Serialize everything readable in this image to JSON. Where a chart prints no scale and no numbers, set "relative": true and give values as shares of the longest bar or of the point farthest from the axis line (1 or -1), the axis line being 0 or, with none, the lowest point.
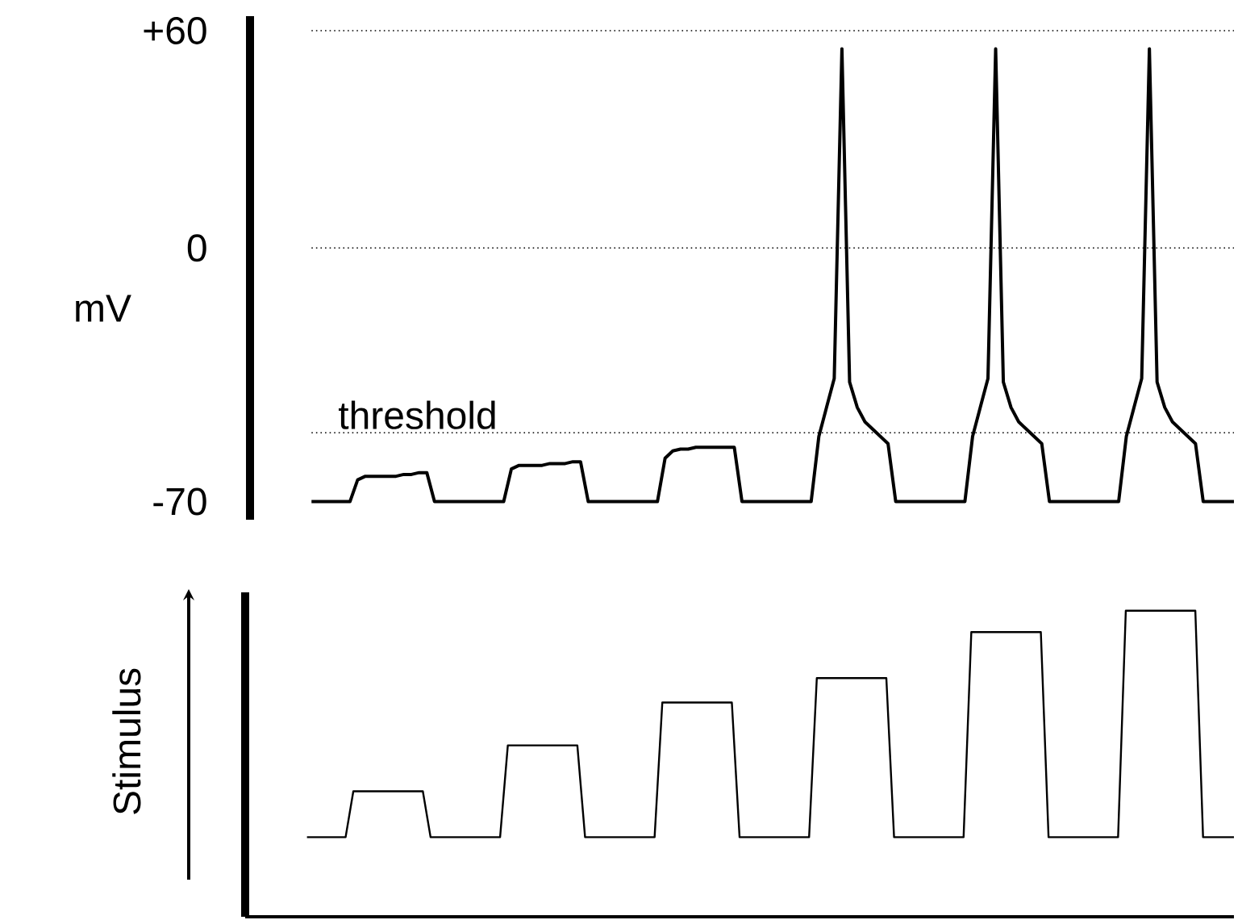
{
  "chart_data": [
    {
      "type": "line",
      "ylabel": "mV",
      "color": "#000000",
      "tick_labels": "y",
      "categories": [
        null,
        null,
        null,
        null,
        null,
        null,
        null,
        null,
        null,
        null,
        null,
        null,
        null,
        null,
        null,
        null,
        null,
        null,
        null,
        null,
        null,
        null,
        null,
        null,
        null,
        null,
        null,
        null,
        null,
        null,
        null,
        null,
        null,
        null,
        null,
        null,
        null,
        null,
        null,
        null,
        null,
        null,
        null,
        null,
        null,
        null,
        null,
        null,
        null,
        null,
        null,
        null,
        null,
        null,
        null,
        null,
        null,
        null,
        null,
        null,
        null,
        null,
        null,
        null,
        null,
        null,
        null,
        null,
        null,
        null,
        null,
        null,
        null,
        null,
        null,
        null,
        null,
        null,
        null,
        null,
        null,
        null,
        null,
        null,
        null,
        null,
        null,
        null,
        null,
        null,
        null,
        null,
        null,
        null,
        null,
        null,
        null,
        null,
        null,
        null,
        null,
        null,
        null,
        null,
        null,
        null,
        null,
        null,
        null,
        null,
        null,
        null,
        null,
        null,
        null,
        null,
        null,
        null,
        null,
        null,
        null
      ],
      "values": [
        -70,
        -70,
        -70,
        -70,
        -70,
        -70,
        -64,
        -63,
        -63,
        -63,
        -63,
        -63,
        -62.5,
        -62.5,
        -62,
        -62,
        -70,
        -70,
        -70,
        -70,
        -70,
        -70,
        -70,
        -70,
        -70,
        -70,
        -61,
        -60,
        -60,
        -60,
        -60,
        -59.5,
        -59.5,
        -59.5,
        -59,
        -59,
        -70,
        -70,
        -70,
        -70,
        -70,
        -70,
        -70,
        -70,
        -70,
        -70,
        -58,
        -56,
        -55.5,
        -55.5,
        -55,
        -55,
        -55,
        -55,
        -55,
        -55,
        -70,
        -70,
        -70,
        -70,
        -70,
        -70,
        -70,
        -70,
        -70,
        -70,
        -52,
        -44,
        -36,
        55,
        -37,
        -44,
        -48,
        -50,
        -52,
        -54,
        -70,
        -70,
        -70,
        -70,
        -70,
        -70,
        -70,
        -70,
        -70,
        -70,
        -52,
        -44,
        -36,
        55,
        -37,
        -44,
        -48,
        -50,
        -52,
        -54,
        -70,
        -70,
        -70,
        -70,
        -70,
        -70,
        -70,
        -70,
        -70,
        -70,
        -52,
        -44,
        -36,
        55,
        -37,
        -44,
        -48,
        -50,
        -52,
        -54,
        -70,
        -70,
        -70,
        -70,
        -70
      ],
      "ylim": [
        -75,
        64
      ],
      "yticks": [
        {
          "value": 60,
          "label": "+60"
        },
        0,
        -70
      ],
      "ref_lines": [
        {
          "axis": "y",
          "value": 60,
          "line_style": "dotted"
        },
        {
          "axis": "y",
          "value": 0,
          "line_style": "dotted"
        },
        {
          "axis": "y",
          "value": -51,
          "label": "threshold",
          "line_style": "dotted"
        }
      ]
    },
    {
      "type": "line",
      "ylabel": "Stimulus",
      "color": "#000000",
      "relative": true,
      "tick_labels": false,
      "categories": [
        null,
        null,
        null,
        null,
        null,
        null,
        null,
        null,
        null,
        null,
        null,
        null,
        null,
        null,
        null,
        null,
        null,
        null,
        null,
        null,
        null,
        null,
        null,
        null,
        null,
        null,
        null,
        null,
        null,
        null,
        null,
        null,
        null,
        null,
        null,
        null,
        null,
        null,
        null,
        null,
        null,
        null,
        null,
        null,
        null,
        null,
        null,
        null,
        null,
        null,
        null,
        null,
        null,
        null,
        null,
        null,
        null,
        null,
        null,
        null,
        null,
        null,
        null,
        null,
        null,
        null,
        null,
        null,
        null,
        null,
        null,
        null,
        null,
        null,
        null,
        null,
        null,
        null,
        null,
        null,
        null,
        null,
        null,
        null,
        null,
        null,
        null,
        null,
        null,
        null,
        null,
        null,
        null,
        null,
        null,
        null,
        null,
        null,
        null,
        null,
        null,
        null,
        null,
        null,
        null,
        null,
        null,
        null,
        null,
        null,
        null,
        null,
        null,
        null,
        null,
        null,
        null,
        null,
        null,
        null,
        null
      ],
      "values": [
        0.26,
        0.26,
        0.26,
        0.26,
        0.26,
        0.26,
        0.41,
        0.41,
        0.41,
        0.41,
        0.41,
        0.41,
        0.41,
        0.41,
        0.41,
        0.41,
        0.26,
        0.26,
        0.26,
        0.26,
        0.26,
        0.26,
        0.26,
        0.26,
        0.26,
        0.26,
        0.56,
        0.56,
        0.56,
        0.56,
        0.56,
        0.56,
        0.56,
        0.56,
        0.56,
        0.56,
        0.26,
        0.26,
        0.26,
        0.26,
        0.26,
        0.26,
        0.26,
        0.26,
        0.26,
        0.26,
        0.7,
        0.7,
        0.7,
        0.7,
        0.7,
        0.7,
        0.7,
        0.7,
        0.7,
        0.7,
        0.26,
        0.26,
        0.26,
        0.26,
        0.26,
        0.26,
        0.26,
        0.26,
        0.26,
        0.26,
        0.78,
        0.78,
        0.78,
        0.78,
        0.78,
        0.78,
        0.78,
        0.78,
        0.78,
        0.78,
        0.26,
        0.26,
        0.26,
        0.26,
        0.26,
        0.26,
        0.26,
        0.26,
        0.26,
        0.26,
        0.93,
        0.93,
        0.93,
        0.93,
        0.93,
        0.93,
        0.93,
        0.93,
        0.93,
        0.93,
        0.26,
        0.26,
        0.26,
        0.26,
        0.26,
        0.26,
        0.26,
        0.26,
        0.26,
        0.26,
        1,
        1,
        1,
        1,
        1,
        1,
        1,
        1,
        1,
        1,
        0.26,
        0.26,
        0.26,
        0.26,
        0.26
      ]
    }
  ]
}
